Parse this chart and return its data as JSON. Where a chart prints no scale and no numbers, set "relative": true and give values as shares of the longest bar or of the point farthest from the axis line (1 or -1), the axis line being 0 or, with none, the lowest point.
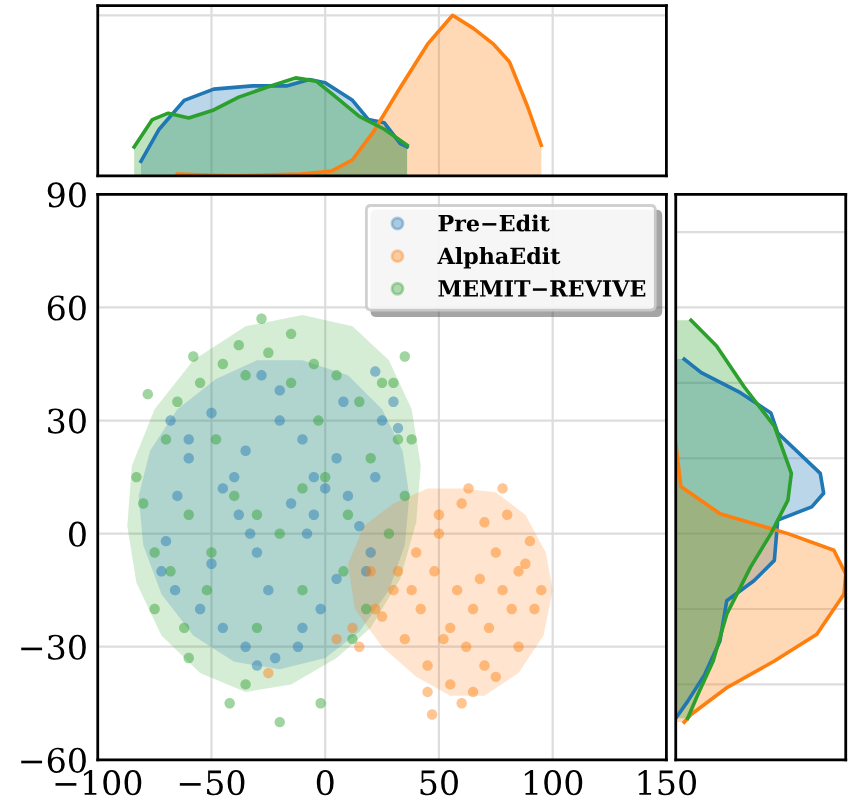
{
  "chart_data": [
    {
      "type": "area",
      "relative": true,
      "xlim": [
        -100,
        150
      ],
      "tick_labels": false,
      "grid": true,
      "series": [
        {
          "color": "#1f77b4",
          "x": [
            -81,
            -73,
            -62,
            -49,
            -32,
            -17,
            -7,
            0,
            12,
            19,
            26,
            33,
            36
          ],
          "values": [
            0.09,
            0.29,
            0.47,
            0.54,
            0.56,
            0.56,
            0.6,
            0.58,
            0.47,
            0.35,
            0.33,
            0.2,
            0.18
          ]
        },
        {
          "color": "#ff7f0e",
          "x": [
            -65,
            -41,
            -11,
            3,
            12,
            21,
            33,
            45,
            56,
            65,
            74,
            81,
            89,
            95
          ],
          "values": [
            0.01,
            0,
            0.01,
            0.03,
            0.1,
            0.27,
            0.55,
            0.82,
            1.0,
            0.92,
            0.82,
            0.71,
            0.43,
            0.19
          ]
        },
        {
          "color": "#2ca02c",
          "x": [
            -84,
            -76,
            -69,
            -60,
            -49,
            -38,
            -26,
            -13,
            -4,
            3,
            15,
            26,
            36
          ],
          "values": [
            0.18,
            0.35,
            0.39,
            0.36,
            0.41,
            0.49,
            0.55,
            0.61,
            0.59,
            0.51,
            0.37,
            0.29,
            0.19
          ]
        }
      ]
    },
    {
      "type": "scatter",
      "xlim": [
        -100,
        150
      ],
      "ylim": [
        -60,
        90
      ],
      "xticks": [
        -100,
        -50,
        0,
        50,
        100,
        150
      ],
      "yticks": [
        -60,
        -30,
        0,
        30,
        60,
        90
      ],
      "grid": true,
      "legend": "top right",
      "series": [
        {
          "type": "area",
          "color": "#2ca02c",
          "x": [
            -10,
            12,
            28,
            38,
            42,
            40,
            33,
            20,
            5,
            -15,
            -35,
            -55,
            -72,
            -83,
            -87,
            -85,
            -75,
            -58,
            -35
          ],
          "values": [
            58,
            55,
            46,
            33,
            18,
            3,
            -12,
            -25,
            -33,
            -40,
            -42,
            -37,
            -27,
            -13,
            2,
            18,
            33,
            46,
            55
          ]
        },
        {
          "type": "area",
          "color": "#1f77b4",
          "x": [
            -10,
            10,
            25,
            34,
            37,
            35,
            28,
            15,
            0,
            -20,
            -40,
            -58,
            -72,
            -80,
            -82,
            -77,
            -65,
            -48,
            -30
          ],
          "values": [
            46,
            42,
            33,
            22,
            10,
            -3,
            -15,
            -26,
            -33,
            -36,
            -34,
            -27,
            -16,
            -3,
            10,
            22,
            33,
            41,
            46
          ]
        },
        {
          "type": "area",
          "color": "#ff7f0e",
          "x": [
            60,
            75,
            88,
            97,
            100,
            96,
            85,
            70,
            55,
            40,
            25,
            13,
            10,
            17,
            30,
            45
          ],
          "values": [
            12,
            11,
            5,
            -5,
            -15,
            -27,
            -37,
            -43,
            -43,
            -38,
            -30,
            -20,
            -8,
            2,
            8,
            12
          ]
        },
        {
          "name": "Pre−Edit",
          "type": "scatter",
          "marker": "circle",
          "color": "#1f77b4",
          "x": [
            -28,
            -50,
            -60,
            -65,
            -70,
            -72,
            -66,
            -55,
            -45,
            -35,
            -30,
            -22,
            -20,
            -10,
            -5,
            0,
            5,
            10,
            15,
            20,
            25,
            30,
            32,
            22,
            -40,
            -38,
            -33,
            -30,
            -25,
            -15,
            -8,
            -2,
            -50,
            -60,
            -68,
            -10,
            5,
            -20,
            -35,
            -45,
            8,
            18,
            22,
            -5,
            -12
          ],
          "values": [
            42,
            32,
            25,
            10,
            -2,
            -10,
            -15,
            -20,
            -25,
            -30,
            -35,
            -33,
            30,
            25,
            15,
            12,
            20,
            10,
            2,
            -5,
            30,
            35,
            28,
            43,
            15,
            5,
            0,
            -5,
            -15,
            8,
            0,
            -20,
            -8,
            20,
            30,
            -25,
            -12,
            38,
            22,
            12,
            35,
            -10,
            15,
            5,
            -30
          ]
        },
        {
          "name": "AlphaEdit",
          "type": "scatter",
          "marker": "circle",
          "color": "#ff7f0e",
          "x": [
            47,
            63,
            78,
            90,
            95,
            85,
            75,
            65,
            55,
            45,
            35,
            25,
            20,
            15,
            30,
            40,
            50,
            60,
            70,
            80,
            88,
            92,
            82,
            72,
            62,
            52,
            42,
            32,
            22,
            58,
            68,
            78,
            48,
            38,
            55,
            65,
            75,
            85,
            45,
            60,
            70,
            50,
            -25,
            5,
            12
          ],
          "values": [
            -48,
            12,
            12,
            -2,
            -15,
            -30,
            -38,
            -42,
            -40,
            -35,
            -28,
            -22,
            -10,
            -30,
            -15,
            -5,
            5,
            8,
            3,
            5,
            -8,
            -20,
            -20,
            -25,
            -30,
            -28,
            -20,
            -10,
            -20,
            -15,
            -12,
            -15,
            -10,
            -15,
            -25,
            -20,
            -5,
            -10,
            -42,
            -45,
            -35,
            0,
            -37,
            -28,
            -25
          ]
        },
        {
          "name": "MEMIT−REVIVE",
          "type": "scatter",
          "marker": "circle",
          "color": "#2ca02c",
          "x": [
            -28,
            -58,
            -78,
            -83,
            -75,
            -60,
            -42,
            -2,
            -20,
            35,
            30,
            -15,
            -38,
            12,
            -70,
            -65,
            -55,
            -45,
            -35,
            -25,
            -15,
            -5,
            5,
            15,
            25,
            32,
            35,
            20,
            10,
            0,
            -10,
            -20,
            -30,
            -40,
            -50,
            -60,
            -68,
            -75,
            -80,
            -48,
            -30,
            -10,
            8,
            28,
            38,
            -62,
            -3,
            18,
            -52,
            -35
          ],
          "values": [
            57,
            47,
            37,
            15,
            -20,
            -33,
            -45,
            -45,
            -50,
            47,
            40,
            53,
            50,
            -28,
            25,
            35,
            40,
            45,
            42,
            48,
            40,
            45,
            42,
            35,
            40,
            25,
            10,
            20,
            5,
            15,
            12,
            0,
            5,
            10,
            -5,
            5,
            -10,
            -5,
            8,
            25,
            -25,
            -15,
            -10,
            0,
            25,
            -25,
            30,
            -20,
            -15,
            -40
          ]
        }
      ]
    },
    {
      "type": "area",
      "relative": true,
      "orientation": "horizontal",
      "ylim": [
        -60,
        90
      ],
      "tick_labels": false,
      "grid": true,
      "series": [
        {
          "color": "#1f77b4",
          "x": [
            46.3,
            42.7,
            37.4,
            32,
            26.7,
            16,
            10.7,
            7.1,
            3.6,
            -7.1,
            -12.5,
            -17.8,
            -28.5,
            -37.4,
            -44.5,
            -49
          ],
          "values": [
            0.05,
            0.15,
            0.38,
            0.56,
            0.6,
            0.85,
            0.87,
            0.8,
            0.6,
            0.58,
            0.46,
            0.3,
            0.26,
            0.17,
            0.07,
            0.0
          ]
        },
        {
          "color": "#ff7f0e",
          "x": [
            24,
            12.5,
            5.3,
            0,
            -4.4,
            -10.7,
            -16,
            -26.7,
            -33.8,
            -40.9,
            -48,
            -50
          ],
          "values": [
            0.0,
            0.03,
            0.26,
            0.66,
            0.93,
            1.0,
            0.99,
            0.83,
            0.58,
            0.3,
            0.09,
            0.05
          ]
        },
        {
          "color": "#2ca02c",
          "x": [
            56.6,
            49.8,
            39.1,
            28.5,
            16,
            8.9,
            0,
            -8.9,
            -21.4,
            -33.8,
            -42.7,
            -49
          ],
          "values": [
            0.09,
            0.24,
            0.4,
            0.58,
            0.68,
            0.66,
            0.56,
            0.44,
            0.3,
            0.22,
            0.13,
            0.07
          ]
        }
      ]
    }
  ]
}
